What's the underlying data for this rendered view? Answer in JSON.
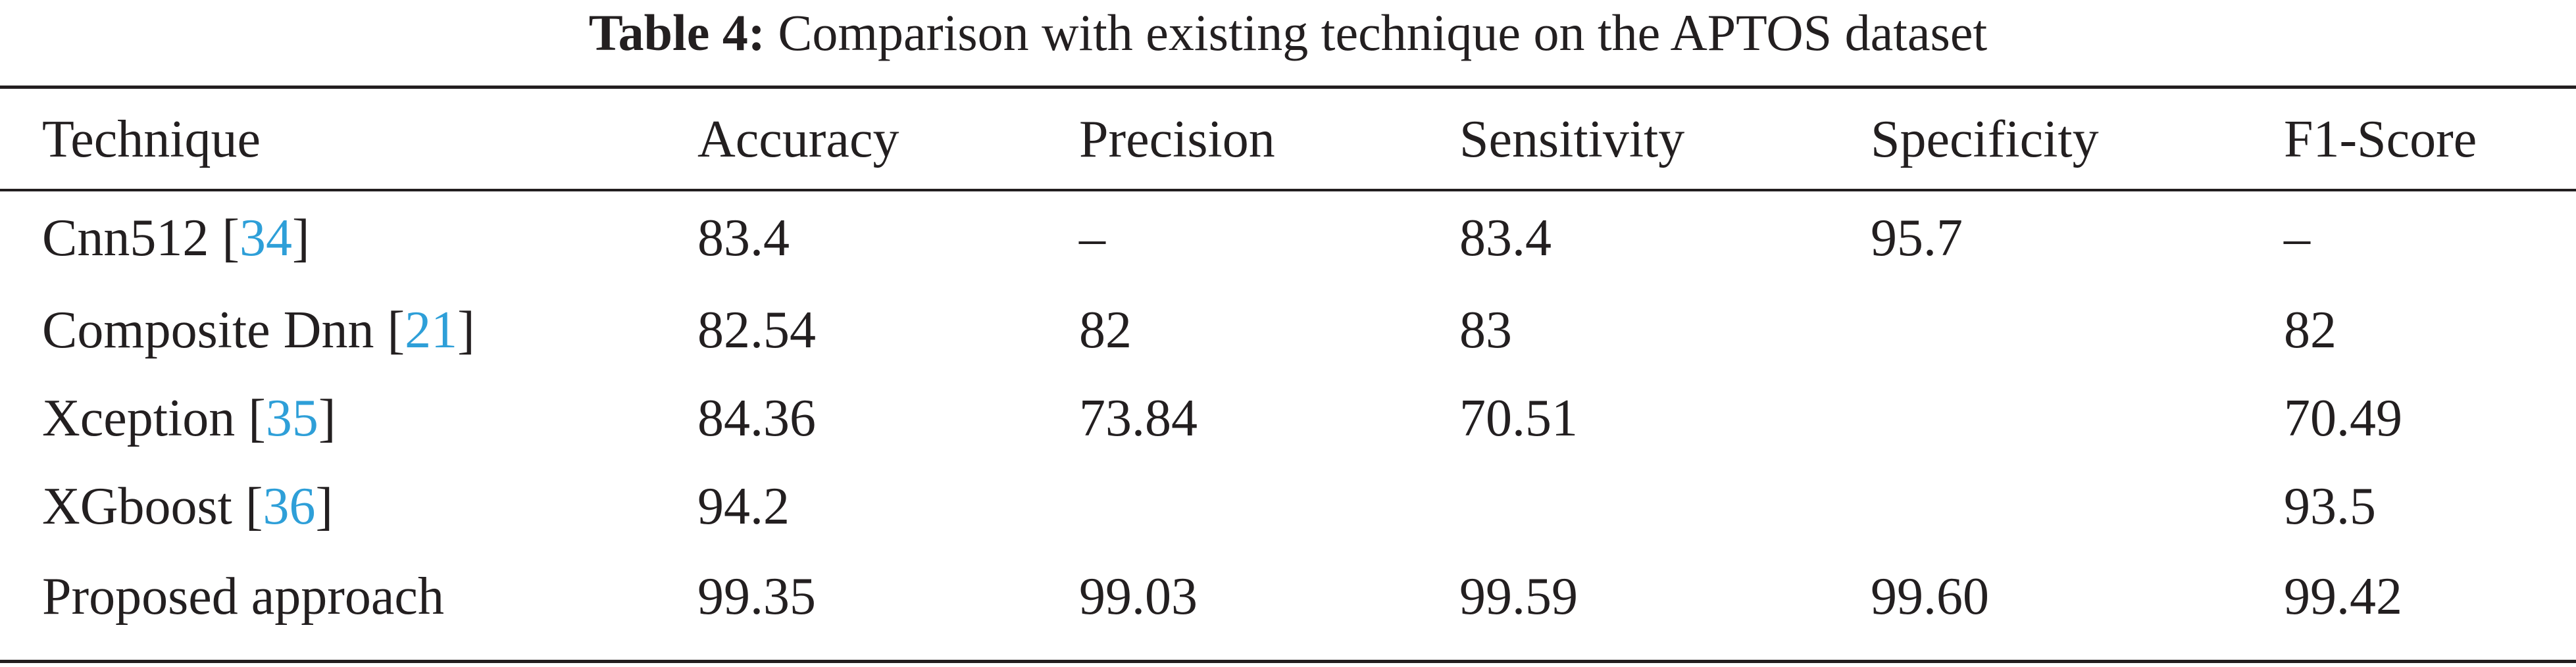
{
  "caption": {
    "label": "Table 4:",
    "text": "Comparison with existing technique on the APTOS dataset"
  },
  "table": {
    "headers": [
      "Technique",
      "Accuracy",
      "Precision",
      "Sensitivity",
      "Specificity",
      "F1-Score"
    ],
    "rows": [
      {
        "technique": "Cnn512",
        "ref": "34",
        "accuracy": "83.4",
        "precision": "–",
        "sensitivity": "83.4",
        "specificity": "95.7",
        "f1": "–"
      },
      {
        "technique": "Composite Dnn",
        "ref": "21",
        "accuracy": "82.54",
        "precision": "82",
        "sensitivity": "83",
        "specificity": "",
        "f1": "82"
      },
      {
        "technique": "Xception",
        "ref": "35",
        "accuracy": "84.36",
        "precision": "73.84",
        "sensitivity": "70.51",
        "specificity": "",
        "f1": "70.49"
      },
      {
        "technique": "XGboost",
        "ref": "36",
        "accuracy": "94.2",
        "precision": "",
        "sensitivity": "",
        "specificity": "",
        "f1": "93.5"
      },
      {
        "technique": "Proposed approach",
        "ref": "",
        "accuracy": "99.35",
        "precision": "99.03",
        "sensitivity": "99.59",
        "specificity": "99.60",
        "f1": "99.42"
      }
    ]
  },
  "colors": {
    "text": "#231f20",
    "citation_link": "#2e9fd8"
  }
}
